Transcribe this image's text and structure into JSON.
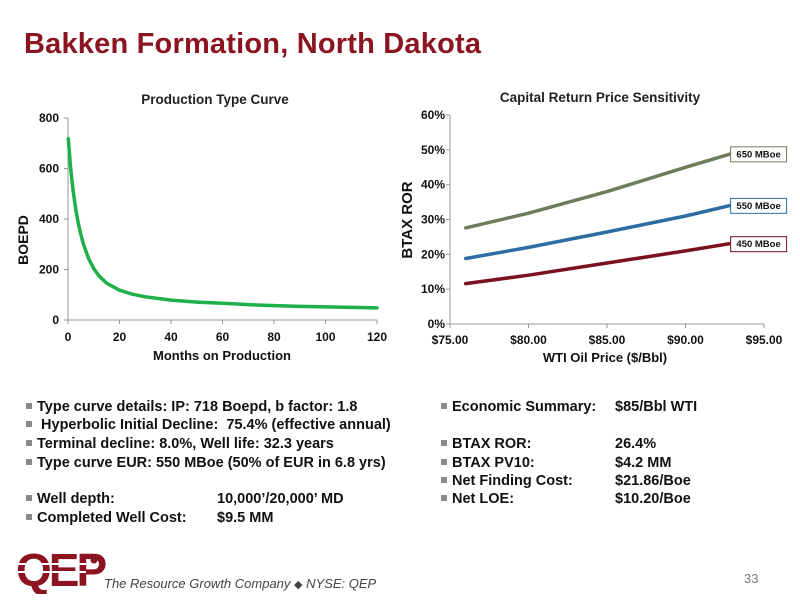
{
  "slide": {
    "title": "Bakken Formation, North Dakota",
    "page_number": "33",
    "footer": {
      "logo_text": "QEP",
      "tagline": "The Resource Growth Company",
      "separator": "◆",
      "ticker": "NYSE: QEP"
    }
  },
  "colors": {
    "title": "#8b1420",
    "type_curve": "#1fb04b",
    "mboe_650": "#6f7c5c",
    "mboe_550": "#2e6da4",
    "mboe_450": "#7a1020",
    "logo": "#8b1420"
  },
  "chart_data": [
    {
      "type": "line",
      "title": "Production Type Curve",
      "xlabel": "Months on Production",
      "ylabel": "BOEPD",
      "xlim": [
        0,
        120
      ],
      "ylim": [
        0,
        800
      ],
      "xticks": [
        "0",
        "20",
        "40",
        "60",
        "80",
        "100",
        "120"
      ],
      "yticks": [
        "0",
        "200",
        "400",
        "600",
        "800"
      ],
      "grid": false,
      "series": [
        {
          "x": [
            0.1,
            1,
            2,
            3,
            4,
            5,
            6,
            8,
            10,
            12,
            15,
            20,
            25,
            30,
            40,
            50,
            60,
            70,
            80,
            90,
            100,
            110,
            120
          ],
          "y": [
            718,
            602,
            510,
            440,
            383,
            338,
            300,
            243,
            203,
            175,
            146,
            118,
            102,
            92,
            79,
            71,
            66,
            61,
            57,
            54,
            52,
            50,
            48
          ]
        }
      ]
    },
    {
      "type": "line",
      "title": "Capital Return Price Sensitivity",
      "xlabel": "WTI Oil Price ($/Bbl)",
      "ylabel": "BTAX ROR",
      "xlim": [
        75,
        95
      ],
      "ylim": [
        0,
        60
      ],
      "xticks": [
        "$75.00",
        "$80.00",
        "$85.00",
        "$90.00",
        "$95.00"
      ],
      "yticks": [
        "0%",
        "10%",
        "20%",
        "30%",
        "40%",
        "50%",
        "60%"
      ],
      "grid": false,
      "series": [
        {
          "name": "650 MBoe",
          "x": [
            76,
            80,
            85,
            90,
            93
          ],
          "y": [
            27.6,
            31.8,
            38.0,
            45.0,
            49.0
          ]
        },
        {
          "name": "550 MBoe",
          "x": [
            76,
            80,
            85,
            90,
            93
          ],
          "y": [
            18.8,
            22.0,
            26.4,
            31.0,
            34.2
          ]
        },
        {
          "name": "450 MBoe",
          "x": [
            76,
            80,
            85,
            90,
            93
          ],
          "y": [
            11.6,
            14.0,
            17.5,
            21.0,
            23.2
          ]
        }
      ]
    }
  ],
  "left_bullets": [
    {
      "text": "Type curve details: IP:  718 Boepd, b factor:  1.8"
    },
    {
      "text": " Hyperbolic Initial Decline:  75.4% (effective annual)"
    },
    {
      "text": "Terminal decline:  8.0%, Well life:  32.3 years"
    },
    {
      "text": "Type curve EUR:  550 MBoe (50% of EUR in 6.8 yrs)"
    },
    {
      "label": "Well depth:",
      "value": "10,000’/20,000’ MD"
    },
    {
      "label": "Completed Well Cost:",
      "value": "$9.5 MM"
    }
  ],
  "right_bullets": [
    {
      "label": "Economic Summary:",
      "value": "$85/Bbl WTI"
    },
    {
      "label": "BTAX ROR:",
      "value": "26.4%"
    },
    {
      "label": "BTAX PV10:",
      "value": "$4.2 MM"
    },
    {
      "label": "Net Finding Cost:",
      "value": "$21.86/Boe"
    },
    {
      "label": "Net LOE:",
      "value": "$10.20/Boe"
    }
  ]
}
